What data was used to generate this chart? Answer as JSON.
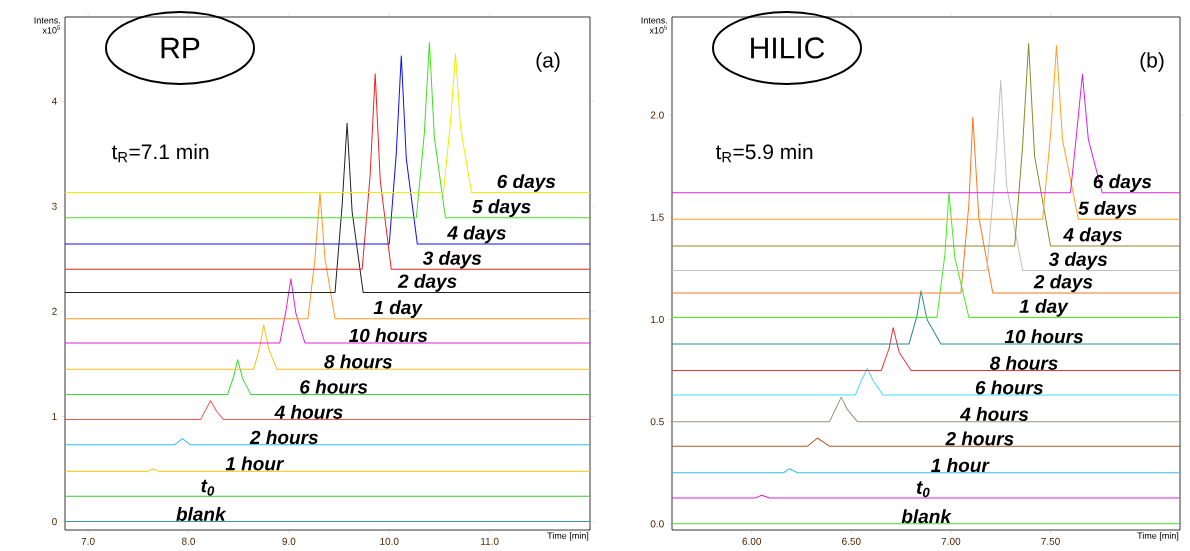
{
  "chart_data": [
    {
      "type": "line",
      "xlabel": "Time [min]",
      "ylabel": "Intens. x10$^{5}$",
      "annotations": [
        "RP",
        "t$_{R}$=7.1 min",
        "(a)"
      ],
      "xlim": [
        6.77,
        12.0
      ],
      "ylim": [
        -0.08,
        4.8
      ],
      "xticks": [
        {
          "value": 7,
          "label": "7.0"
        },
        {
          "value": 8,
          "label": "8.0"
        },
        {
          "value": 9,
          "label": "9.0"
        },
        {
          "value": 10,
          "label": "10.0"
        },
        {
          "value": 11,
          "label": "11.0"
        }
      ],
      "yticks": [
        0,
        1,
        2,
        3,
        4
      ],
      "series": [
        {
          "name": "blank",
          "color": "#3a9aa0",
          "x": [
            6.77,
            12.0
          ],
          "values": [
            0,
            0
          ]
        },
        {
          "name": "t$_{0}$",
          "color": "#33cc33",
          "x": [
            6.77,
            12.0
          ],
          "values": [
            0.24,
            0.24
          ]
        },
        {
          "name": "1 hour",
          "color": "#f0c800",
          "x": [
            6.77,
            7.6,
            7.65,
            7.7,
            12.0
          ],
          "values": [
            0.48,
            0.48,
            0.5,
            0.48,
            0.48
          ]
        },
        {
          "name": "2 hours",
          "color": "#33bbee",
          "x": [
            6.77,
            7.86,
            7.94,
            8.02,
            12.0
          ],
          "values": [
            0.73,
            0.73,
            0.79,
            0.73,
            0.73
          ]
        },
        {
          "name": "4 hours",
          "color": "#ee5555",
          "x": [
            6.77,
            8.12,
            8.17,
            8.22,
            8.28,
            8.35,
            12.0
          ],
          "values": [
            0.97,
            0.97,
            1.06,
            1.15,
            1.05,
            0.97,
            0.97
          ]
        },
        {
          "name": "6 hours",
          "color": "#33dd33",
          "x": [
            6.77,
            8.39,
            8.45,
            8.49,
            8.54,
            8.62,
            12.0
          ],
          "values": [
            1.21,
            1.21,
            1.38,
            1.54,
            1.36,
            1.21,
            1.21
          ]
        },
        {
          "name": "8 hours",
          "color": "#f0c020",
          "x": [
            6.77,
            8.65,
            8.71,
            8.75,
            8.8,
            8.88,
            12.0
          ],
          "values": [
            1.45,
            1.45,
            1.66,
            1.87,
            1.64,
            1.45,
            1.45
          ]
        },
        {
          "name": "10 hours",
          "color": "#dd22dd",
          "x": [
            6.77,
            8.91,
            8.97,
            9.02,
            9.07,
            9.16,
            12.0
          ],
          "values": [
            1.7,
            1.7,
            2.0,
            2.31,
            1.98,
            1.7,
            1.7
          ]
        },
        {
          "name": "1 day",
          "color": "#ff9922",
          "x": [
            6.77,
            9.19,
            9.26,
            9.31,
            9.36,
            9.46,
            12.0
          ],
          "values": [
            1.93,
            1.93,
            2.5,
            3.13,
            2.5,
            1.93,
            1.93
          ]
        },
        {
          "name": "2 days",
          "color": "#222222",
          "x": [
            6.77,
            9.46,
            9.53,
            9.58,
            9.63,
            9.74,
            12.0
          ],
          "values": [
            2.18,
            2.18,
            3.0,
            3.79,
            2.95,
            2.18,
            2.18
          ]
        },
        {
          "name": "3 days",
          "color": "#ee2222",
          "x": [
            6.77,
            9.73,
            9.81,
            9.86,
            9.91,
            10.02,
            12.0
          ],
          "values": [
            2.4,
            2.4,
            3.3,
            4.26,
            3.25,
            2.4,
            2.4
          ]
        },
        {
          "name": "4 days",
          "color": "#1111ee",
          "x": [
            6.77,
            10.0,
            10.07,
            10.12,
            10.17,
            10.28,
            12.0
          ],
          "values": [
            2.64,
            2.64,
            3.5,
            4.43,
            3.45,
            2.64,
            2.64
          ]
        },
        {
          "name": "5 days",
          "color": "#44dd22",
          "x": [
            6.77,
            10.27,
            10.35,
            10.4,
            10.45,
            10.56,
            12.0
          ],
          "values": [
            2.89,
            2.89,
            3.7,
            4.56,
            3.65,
            2.89,
            2.89
          ]
        },
        {
          "name": "6 days",
          "color": "#eeee00",
          "x": [
            6.77,
            10.54,
            10.61,
            10.66,
            10.71,
            10.82,
            12.0
          ],
          "values": [
            3.13,
            3.13,
            3.8,
            4.45,
            3.75,
            3.13,
            3.13
          ]
        }
      ]
    },
    {
      "type": "line",
      "xlabel": "Time [min]",
      "ylabel": "Intens. x10$^{5}$",
      "annotations": [
        "HILIC",
        "t$_{R}$=5.9 min",
        "(b)"
      ],
      "xlim": [
        5.6,
        8.15
      ],
      "ylim": [
        -0.03,
        2.48
      ],
      "xticks": [
        {
          "value": 6,
          "label": "6.00"
        },
        {
          "value": 6.5,
          "label": "6.50"
        },
        {
          "value": 7,
          "label": "7.00"
        },
        {
          "value": 7.5,
          "label": "7.50"
        }
      ],
      "yticks": [
        {
          "value": 0,
          "label": "0.0"
        },
        {
          "value": 0.5,
          "label": "0.5"
        },
        {
          "value": 1,
          "label": "1.0"
        },
        {
          "value": 1.5,
          "label": "1.5"
        },
        {
          "value": 2,
          "label": "2.0"
        }
      ],
      "series": [
        {
          "name": "blank",
          "color": "#44dd22",
          "x": [
            5.6,
            8.15
          ],
          "values": [
            0,
            0
          ]
        },
        {
          "name": "t$_{0}$",
          "color": "#dd22dd",
          "x": [
            5.6,
            6.02,
            6.05,
            6.09,
            8.15
          ],
          "values": [
            0.127,
            0.127,
            0.14,
            0.127,
            0.127
          ]
        },
        {
          "name": "1 hour",
          "color": "#33bbee",
          "x": [
            5.6,
            6.16,
            6.19,
            6.23,
            8.15
          ],
          "values": [
            0.25,
            0.25,
            0.27,
            0.25,
            0.25
          ]
        },
        {
          "name": "2 hours",
          "color": "#b05a2a",
          "x": [
            5.6,
            6.28,
            6.33,
            6.39,
            8.15
          ],
          "values": [
            0.38,
            0.38,
            0.42,
            0.38,
            0.38
          ]
        },
        {
          "name": "4 hours",
          "color": "#8a9a80",
          "x": [
            5.6,
            6.39,
            6.42,
            6.45,
            6.48,
            6.53,
            8.15
          ],
          "values": [
            0.5,
            0.5,
            0.56,
            0.62,
            0.56,
            0.5,
            0.5
          ]
        },
        {
          "name": "6 hours",
          "color": "#44ddff",
          "x": [
            5.6,
            6.52,
            6.55,
            6.58,
            6.61,
            6.66,
            8.15
          ],
          "values": [
            0.63,
            0.63,
            0.7,
            0.76,
            0.7,
            0.63,
            0.63
          ]
        },
        {
          "name": "8 hours",
          "color": "#ee3333",
          "x": [
            5.6,
            6.65,
            6.69,
            6.71,
            6.74,
            6.8,
            8.15
          ],
          "values": [
            0.75,
            0.75,
            0.86,
            0.96,
            0.84,
            0.75,
            0.75
          ]
        },
        {
          "name": "10 hours",
          "color": "#2a8a8a",
          "x": [
            5.6,
            6.79,
            6.83,
            6.85,
            6.88,
            6.95,
            8.15
          ],
          "values": [
            0.88,
            0.88,
            1.02,
            1.14,
            1.0,
            0.88,
            0.88
          ]
        },
        {
          "name": "1 day",
          "color": "#44ee22",
          "x": [
            5.6,
            6.93,
            6.97,
            6.99,
            7.02,
            7.09,
            8.15
          ],
          "values": [
            1.01,
            1.01,
            1.32,
            1.62,
            1.3,
            1.01,
            1.01
          ]
        },
        {
          "name": "2 days",
          "color": "#ff7722",
          "x": [
            5.6,
            7.05,
            7.09,
            7.11,
            7.14,
            7.21,
            8.15
          ],
          "values": [
            1.13,
            1.13,
            1.56,
            1.99,
            1.5,
            1.13,
            1.13
          ]
        },
        {
          "name": "3 days",
          "color": "#c0c0c0",
          "x": [
            5.6,
            7.18,
            7.22,
            7.25,
            7.28,
            7.36,
            8.15
          ],
          "values": [
            1.24,
            1.24,
            1.7,
            2.17,
            1.65,
            1.24,
            1.24
          ]
        },
        {
          "name": "4 days",
          "color": "#8a8a2a",
          "x": [
            5.6,
            7.32,
            7.36,
            7.39,
            7.42,
            7.5,
            8.15
          ],
          "values": [
            1.36,
            1.36,
            1.85,
            2.35,
            1.8,
            1.36,
            1.36
          ]
        },
        {
          "name": "5 days",
          "color": "#ffa022",
          "x": [
            5.6,
            7.46,
            7.5,
            7.53,
            7.56,
            7.64,
            8.15
          ],
          "values": [
            1.49,
            1.49,
            1.9,
            2.34,
            1.88,
            1.49,
            1.49
          ]
        },
        {
          "name": "6 days",
          "color": "#dd22dd",
          "x": [
            5.6,
            7.6,
            7.63,
            7.66,
            7.69,
            7.76,
            8.15
          ],
          "values": [
            1.62,
            1.62,
            1.9,
            2.2,
            1.88,
            1.62,
            1.62
          ]
        }
      ]
    }
  ]
}
